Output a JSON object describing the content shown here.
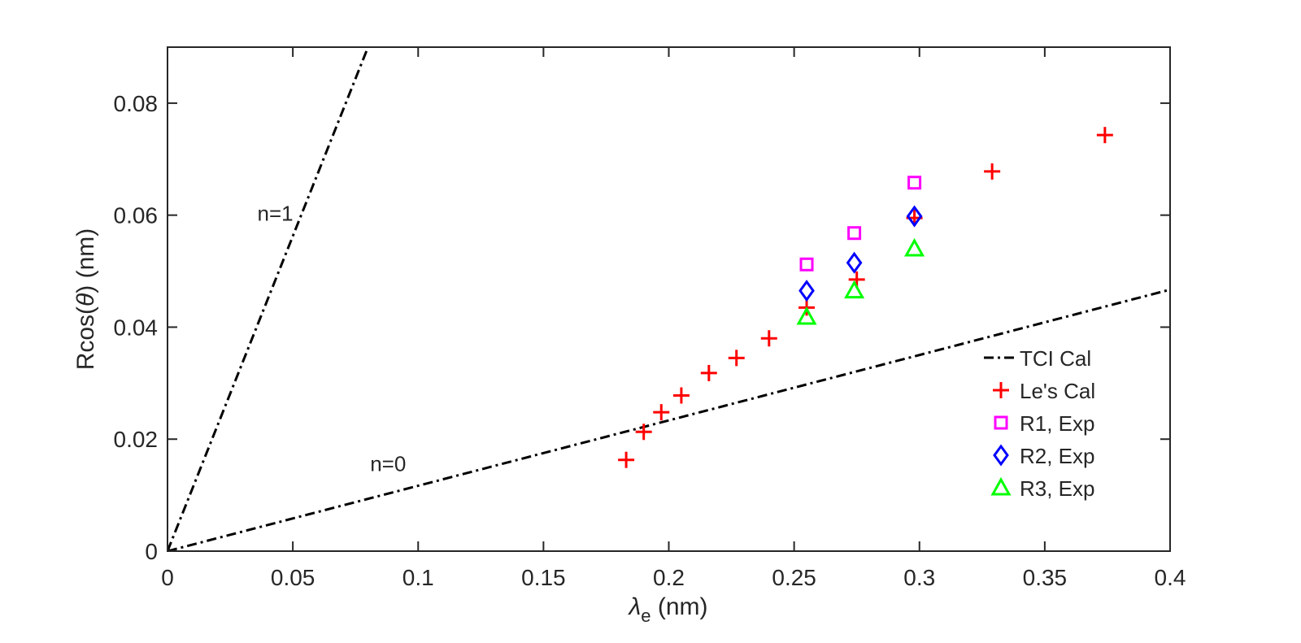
{
  "chart_data": {
    "type": "scatter",
    "title": "",
    "xlabel": {
      "symbol": "λ",
      "subscript": "e",
      "unit": " (nm)"
    },
    "ylabel": {
      "prefix": "Rcos(",
      "symbol": "θ",
      "suffix": ") (nm)"
    },
    "xlim": [
      0,
      0.4
    ],
    "ylim": [
      0,
      0.09
    ],
    "grid": false,
    "xticks": [
      0,
      0.05,
      0.1,
      0.15,
      0.2,
      0.25,
      0.3,
      0.35,
      0.4
    ],
    "xtick_labels": [
      "0",
      "0.05",
      "0.1",
      "0.15",
      "0.2",
      "0.25",
      "0.3",
      "0.35",
      "0.4"
    ],
    "yticks": [
      0,
      0.02,
      0.04,
      0.06,
      0.08
    ],
    "ytick_labels": [
      "0",
      "0.02",
      "0.04",
      "0.06",
      "0.08"
    ],
    "lines": [
      {
        "name": "n1",
        "series": "TCI Cal",
        "label": "n=1",
        "x": [
          0,
          0.08
        ],
        "y": [
          0,
          0.09
        ],
        "label_at": [
          0.043,
          0.059
        ]
      },
      {
        "name": "n0",
        "series": "TCI Cal",
        "label": "n=0",
        "x": [
          0,
          0.4
        ],
        "y": [
          0,
          0.0467
        ],
        "label_at": [
          0.088,
          0.0143
        ]
      }
    ],
    "series": [
      {
        "name": "TCI Cal",
        "marker": "dashdot-line",
        "color": "#000000"
      },
      {
        "name": "Le's Cal",
        "marker": "plus",
        "color": "#ff0000",
        "x": [
          0.183,
          0.19,
          0.197,
          0.205,
          0.216,
          0.227,
          0.24,
          0.255,
          0.275,
          0.298,
          0.329,
          0.374
        ],
        "y": [
          0.0163,
          0.0213,
          0.0248,
          0.0278,
          0.0318,
          0.0345,
          0.038,
          0.0435,
          0.0485,
          0.0595,
          0.0678,
          0.0743
        ]
      },
      {
        "name": "R1, Exp",
        "marker": "square",
        "color": "#ff00ff",
        "x": [
          0.255,
          0.274,
          0.298
        ],
        "y": [
          0.0512,
          0.0568,
          0.0658
        ]
      },
      {
        "name": "R2, Exp",
        "marker": "diamond",
        "color": "#0000ff",
        "x": [
          0.255,
          0.274,
          0.298
        ],
        "y": [
          0.0465,
          0.0515,
          0.0598
        ]
      },
      {
        "name": "R3, Exp",
        "marker": "triangle",
        "color": "#00ff00",
        "x": [
          0.255,
          0.274,
          0.298
        ],
        "y": [
          0.0418,
          0.0465,
          0.054
        ]
      }
    ],
    "legend": {
      "position": "bottom-right",
      "entries": [
        "TCI Cal",
        "Le's Cal",
        "R1, Exp",
        "R2, Exp",
        "R3, Exp"
      ]
    }
  }
}
